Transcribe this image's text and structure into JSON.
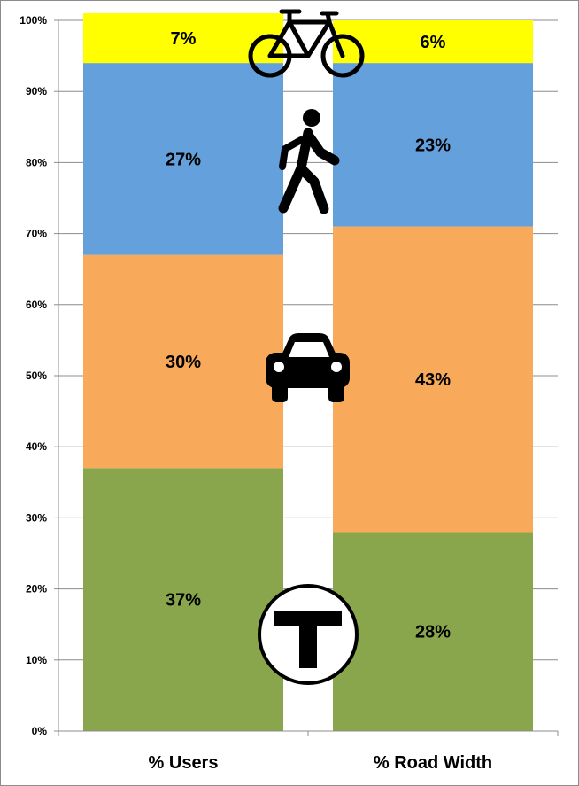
{
  "chart_data": {
    "type": "bar",
    "stacked": true,
    "categories": [
      "% Users",
      "% Road Width"
    ],
    "series": [
      {
        "icon": "transit-t-icon",
        "color": "#8aa64d",
        "values": [
          37,
          28
        ],
        "labels": [
          "37%",
          "28%"
        ]
      },
      {
        "icon": "car-icon",
        "color": "#f9a95a",
        "values": [
          30,
          43
        ],
        "labels": [
          "30%",
          "43%"
        ]
      },
      {
        "icon": "pedestrian-icon",
        "color": "#63a0dc",
        "values": [
          27,
          23
        ],
        "labels": [
          "27%",
          "23%"
        ]
      },
      {
        "icon": "bicycle-icon",
        "color": "#ffff00",
        "values": [
          7,
          6
        ],
        "labels": [
          "7%",
          "6%"
        ]
      }
    ],
    "ylim": [
      0,
      100
    ],
    "yticks": [
      "0%",
      "10%",
      "20%",
      "30%",
      "40%",
      "50%",
      "60%",
      "70%",
      "80%",
      "90%",
      "100%"
    ],
    "grid": true,
    "legend": "none",
    "title": "",
    "xlabel": "",
    "ylabel": ""
  }
}
